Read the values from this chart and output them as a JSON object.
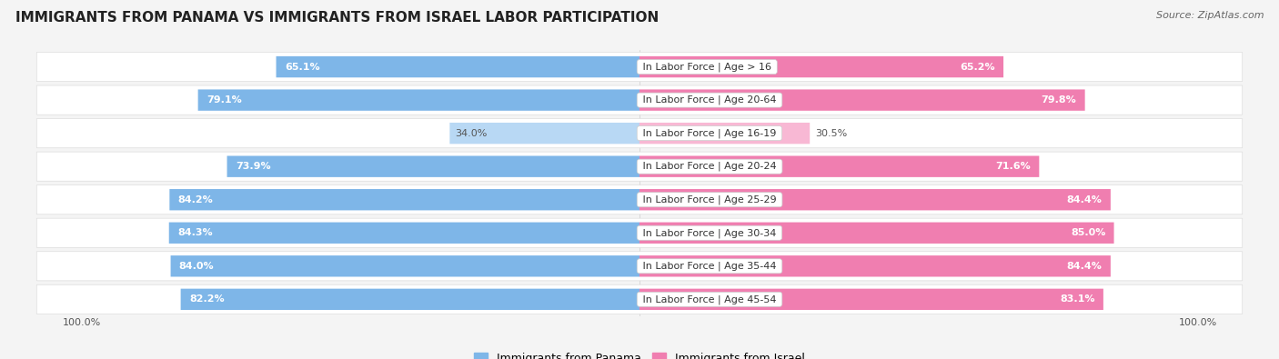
{
  "title": "IMMIGRANTS FROM PANAMA VS IMMIGRANTS FROM ISRAEL LABOR PARTICIPATION",
  "source": "Source: ZipAtlas.com",
  "categories": [
    "In Labor Force | Age > 16",
    "In Labor Force | Age 20-64",
    "In Labor Force | Age 16-19",
    "In Labor Force | Age 20-24",
    "In Labor Force | Age 25-29",
    "In Labor Force | Age 30-34",
    "In Labor Force | Age 35-44",
    "In Labor Force | Age 45-54"
  ],
  "panama_values": [
    65.1,
    79.1,
    34.0,
    73.9,
    84.2,
    84.3,
    84.0,
    82.2
  ],
  "israel_values": [
    65.2,
    79.8,
    30.5,
    71.6,
    84.4,
    85.0,
    84.4,
    83.1
  ],
  "panama_color": "#7EB6E8",
  "israel_color": "#F07EB0",
  "panama_color_light": "#B8D8F4",
  "israel_color_light": "#F8B8D4",
  "bar_height": 0.62,
  "background_color": "#f4f4f4",
  "row_bg_color": "#ffffff",
  "title_fontsize": 11,
  "label_fontsize": 8,
  "value_fontsize": 8,
  "legend_fontsize": 9
}
